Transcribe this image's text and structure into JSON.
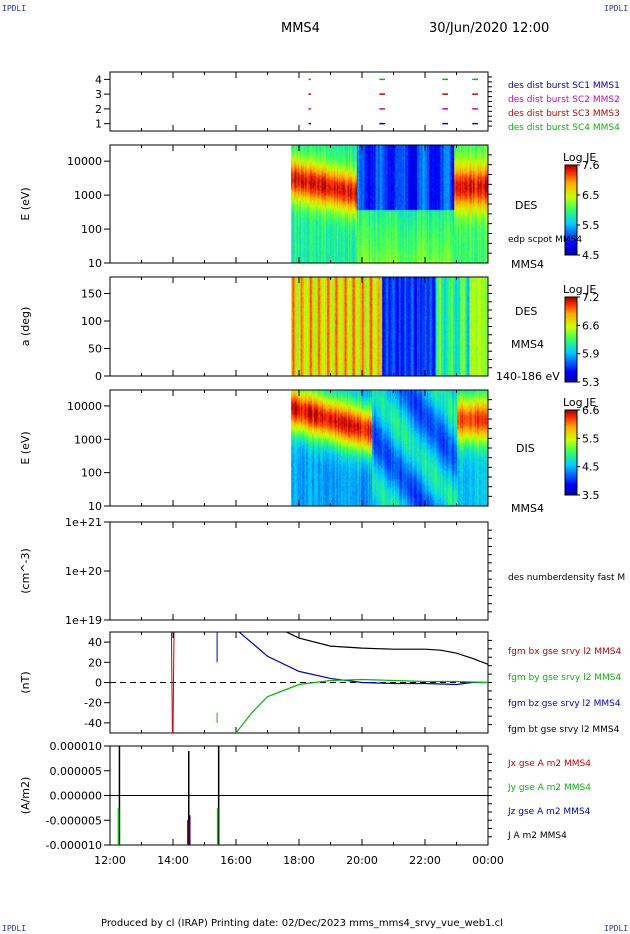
{
  "corner_label": "IPDLI",
  "header": {
    "spacecraft": "MMS4",
    "datetime": "30/Jun/2020 12:00"
  },
  "footer": "Produced by cl (IRAP)   Printing date: 02/Dec/2023   mms_mms4_srvy_vue_web1.cl",
  "x_axis": {
    "ticks": [
      "12:00",
      "14:00",
      "16:00",
      "18:00",
      "20:00",
      "22:00",
      "00:00"
    ]
  },
  "colors": {
    "mms1": "#0000cc",
    "mms2": "#cc00cc",
    "mms3": "#cc0000",
    "mms4": "#00bb00",
    "bx": "#cc0000",
    "by": "#00bb00",
    "bz": "#0000cc",
    "bt": "#000000"
  },
  "chart_data": [
    {
      "type": "scatter",
      "name": "burst",
      "yticks": [
        "4",
        "3",
        "2",
        "1"
      ],
      "ylim": [
        0.5,
        4.5
      ],
      "legend": [
        "des dist burst SC1 MMS1",
        "des dist burst SC2 MMS2",
        "des dist burst SC3 MMS3",
        "des dist burst SC4 MMS4"
      ],
      "legend_placement": "right",
      "segments_hours": [
        [
          6.3,
          6.35
        ],
        [
          8.55,
          8.7
        ],
        [
          10.55,
          10.7
        ],
        [
          11.5,
          11.65
        ]
      ]
    },
    {
      "type": "heatmap",
      "name": "des_energy",
      "ylabel": "E (eV)",
      "yticks": [
        "10000",
        "1000",
        "100",
        "10"
      ],
      "yscale": "log",
      "ylim": [
        10,
        30000
      ],
      "side_label": "DES",
      "extra_labels": [
        "edp scpot MMS4",
        "MMS4"
      ],
      "colorbar": {
        "title": "Log JE",
        "ticks": [
          "7.6",
          "6.5",
          "5.5",
          "4.5"
        ],
        "range": [
          4.5,
          7.6
        ]
      },
      "data_start_hour": 5.75
    },
    {
      "type": "heatmap",
      "name": "des_pitch",
      "ylabel": "a (deg)",
      "yticks": [
        "150",
        "100",
        "50",
        "0"
      ],
      "ylim": [
        0,
        180
      ],
      "side_label": "DES",
      "extra_labels": [
        "MMS4",
        "140-186 eV"
      ],
      "colorbar": {
        "title": "Log JE",
        "ticks": [
          "7.2",
          "6.6",
          "5.9",
          "5.3"
        ],
        "range": [
          5.3,
          7.2
        ]
      },
      "data_start_hour": 5.75
    },
    {
      "type": "heatmap",
      "name": "dis_energy",
      "ylabel": "E (eV)",
      "yticks": [
        "10000",
        "1000",
        "100",
        "10"
      ],
      "yscale": "log",
      "ylim": [
        10,
        30000
      ],
      "side_label": "DIS",
      "extra_labels": [
        "MMS4"
      ],
      "colorbar": {
        "title": "Log JE",
        "ticks": [
          "6.6",
          "5.5",
          "4.5",
          "3.5"
        ],
        "range": [
          3.5,
          6.6
        ]
      },
      "data_start_hour": 5.75
    },
    {
      "type": "line",
      "name": "density",
      "ylabel": "(cm^-3)",
      "yticks": [
        "1e+21",
        "1e+20",
        "1e+19"
      ],
      "yscale": "log",
      "ylim": [
        1e+19,
        1e+21
      ],
      "legend": [
        "des numberdensity fast M"
      ]
    },
    {
      "type": "line",
      "name": "fgm",
      "ylabel": "(nT)",
      "yticks": [
        "40",
        "20",
        "0",
        "-20",
        "-40"
      ],
      "ylim": [
        -50,
        50
      ],
      "legend": [
        "fgm bx gse srvy l2 MMS4",
        "fgm by gse srvy l2 MMS4",
        "fgm bz gse srvy l2 MMS4",
        "fgm bt gse srvy l2 MMS4"
      ],
      "series": [
        {
          "key": "bt",
          "x": [
            5.6,
            6,
            7,
            8,
            9,
            10,
            10.5,
            11,
            11.5,
            12
          ],
          "y": [
            50,
            44,
            36,
            34,
            33,
            33,
            32,
            29,
            24,
            18
          ]
        },
        {
          "key": "bz",
          "x": [
            4.1,
            5,
            6,
            7,
            8,
            9,
            10,
            11,
            11.5,
            12
          ],
          "y": [
            50,
            26,
            11,
            4,
            0,
            -1,
            -1,
            -2,
            0,
            0
          ]
        },
        {
          "key": "by",
          "x": [
            4.0,
            4.5,
            5,
            6,
            7,
            8,
            9,
            10,
            11,
            12
          ],
          "y": [
            -50,
            -30,
            -14,
            -2,
            2,
            3,
            2,
            1,
            1,
            0
          ]
        }
      ]
    },
    {
      "type": "line",
      "name": "current",
      "ylabel": "(A/m2)",
      "yticks": [
        "0.000010",
        "0.000005",
        "0.000000",
        "-0.000005",
        "-0.000010"
      ],
      "ylim": [
        -1e-05,
        1e-05
      ],
      "legend": [
        "Jx gse A m2 MMS4",
        "Jy gse A m2 MMS4",
        "Jz gse A m2 MMS4",
        "J A m2 MMS4"
      ]
    }
  ]
}
